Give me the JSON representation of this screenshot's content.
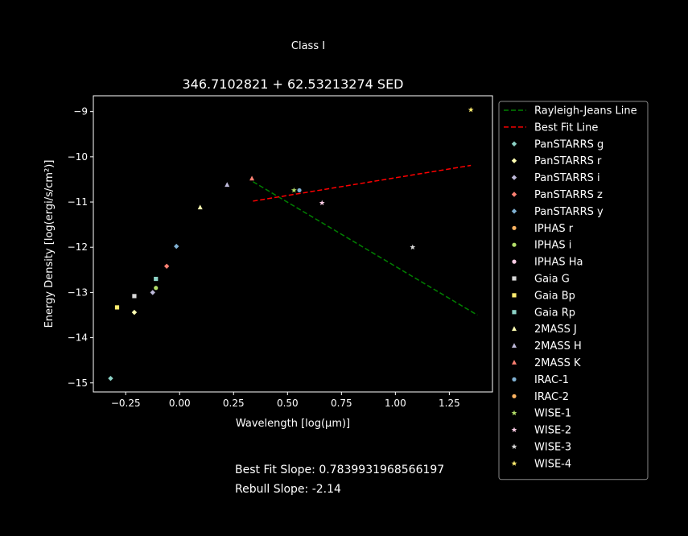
{
  "suptitle": "Class I",
  "notes": {
    "best_fit": "Best Fit Slope: 0.7839931968566197",
    "rebull": "Rebull Slope: -2.14"
  },
  "chart_data": {
    "type": "scatter",
    "title": "346.7102821 + 62.53213274 SED",
    "xlabel": "Wavelength [log(μm)]",
    "ylabel": "Energy Density [log(ergi/s/cm²)]",
    "xlim": [
      -0.4,
      1.45
    ],
    "ylim": [
      -15.2,
      -8.65
    ],
    "xticks": [
      -0.25,
      0.0,
      0.25,
      0.5,
      0.75,
      1.0,
      1.25
    ],
    "xtick_labels": [
      "−0.25",
      "0.00",
      "0.25",
      "0.50",
      "0.75",
      "1.00",
      "1.25"
    ],
    "yticks": [
      -9,
      -10,
      -11,
      -12,
      -13,
      -14,
      -15
    ],
    "ytick_labels": [
      "−9",
      "−10",
      "−11",
      "−12",
      "−13",
      "−14",
      "−15"
    ],
    "grid": false,
    "legend_position": "outside-right",
    "background": "#000000",
    "lines": [
      {
        "name": "Rayleigh-Jeans Line",
        "color": "#008000",
        "dash": "dashed",
        "x": [
          0.34,
          1.38
        ],
        "y": [
          -10.55,
          -13.5
        ]
      },
      {
        "name": "Best Fit Line",
        "color": "#ff0000",
        "dash": "dashed",
        "x": [
          0.34,
          1.35
        ],
        "y": [
          -10.98,
          -10.19
        ]
      }
    ],
    "series": [
      {
        "name": "PanSTARRS g",
        "marker": "diamond",
        "color": "#8dd3c7",
        "x": [
          -0.32
        ],
        "y": [
          -14.9
        ]
      },
      {
        "name": "PanSTARRS r",
        "marker": "diamond",
        "color": "#ffffb3",
        "x": [
          -0.21
        ],
        "y": [
          -13.44
        ]
      },
      {
        "name": "PanSTARRS i",
        "marker": "diamond",
        "color": "#bebada",
        "x": [
          -0.125
        ],
        "y": [
          -13.0
        ]
      },
      {
        "name": "PanSTARRS z",
        "marker": "diamond",
        "color": "#fb8072",
        "x": [
          -0.06
        ],
        "y": [
          -12.42
        ]
      },
      {
        "name": "PanSTARRS y",
        "marker": "diamond",
        "color": "#80b1d3",
        "x": [
          -0.015
        ],
        "y": [
          -11.98
        ]
      },
      {
        "name": "IPHAS r",
        "marker": "circle",
        "color": "#fdb462",
        "x": [],
        "y": []
      },
      {
        "name": "IPHAS i",
        "marker": "circle",
        "color": "#b3de69",
        "x": [
          -0.11
        ],
        "y": [
          -12.9
        ]
      },
      {
        "name": "IPHAS Ha",
        "marker": "circle",
        "color": "#fccde5",
        "x": [],
        "y": []
      },
      {
        "name": "Gaia G",
        "marker": "square",
        "color": "#d9d9d9",
        "x": [
          -0.21
        ],
        "y": [
          -13.08
        ]
      },
      {
        "name": "Gaia Bp",
        "marker": "square",
        "color": "#ffed6f",
        "x": [
          -0.29
        ],
        "y": [
          -13.33
        ]
      },
      {
        "name": "Gaia Rp",
        "marker": "square",
        "color": "#8dd3c7",
        "x": [
          -0.11
        ],
        "y": [
          -12.7
        ]
      },
      {
        "name": "2MASS J",
        "marker": "triangle",
        "color": "#ffffb3",
        "x": [
          0.095
        ],
        "y": [
          -11.12
        ]
      },
      {
        "name": "2MASS H",
        "marker": "triangle",
        "color": "#bebada",
        "x": [
          0.22
        ],
        "y": [
          -10.62
        ]
      },
      {
        "name": "2MASS K",
        "marker": "triangle",
        "color": "#fb8072",
        "x": [
          0.335
        ],
        "y": [
          -10.48
        ]
      },
      {
        "name": "IRAC-1",
        "marker": "circle",
        "color": "#80b1d3",
        "x": [
          0.555
        ],
        "y": [
          -10.74
        ]
      },
      {
        "name": "IRAC-2",
        "marker": "circle",
        "color": "#fdb462",
        "x": [],
        "y": []
      },
      {
        "name": "WISE-1",
        "marker": "star",
        "color": "#b3de69",
        "x": [
          0.53
        ],
        "y": [
          -10.74
        ]
      },
      {
        "name": "WISE-2",
        "marker": "star",
        "color": "#fccde5",
        "x": [
          0.66
        ],
        "y": [
          -11.02
        ]
      },
      {
        "name": "WISE-3",
        "marker": "star",
        "color": "#d9d9d9",
        "x": [
          1.08
        ],
        "y": [
          -12.0
        ]
      },
      {
        "name": "WISE-4",
        "marker": "star",
        "color": "#ffed6f",
        "x": [
          1.35
        ],
        "y": [
          -8.96
        ]
      }
    ]
  }
}
